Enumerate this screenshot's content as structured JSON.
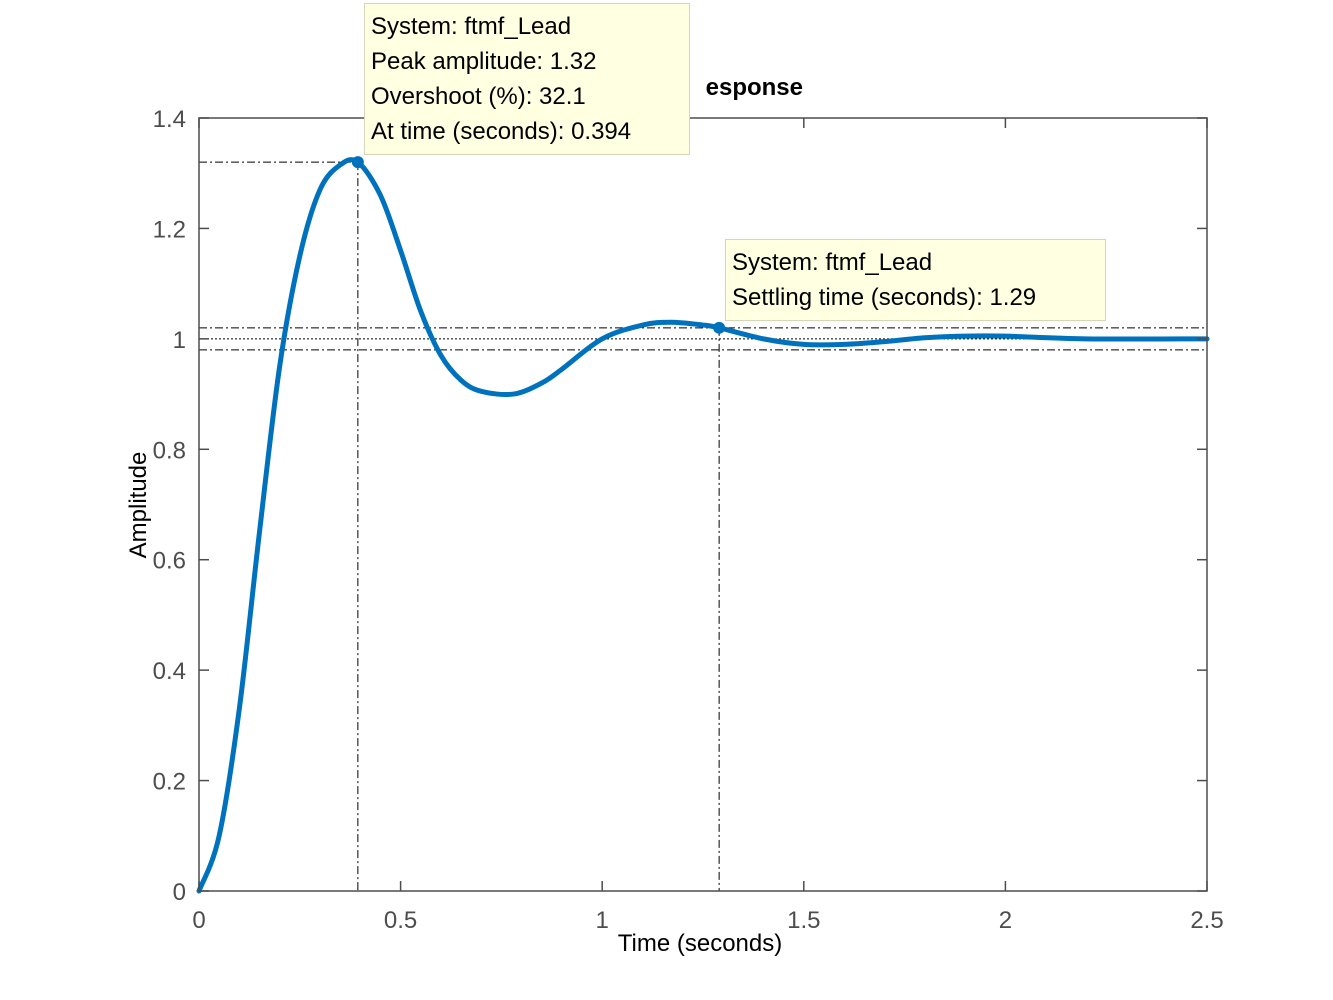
{
  "chart_data": {
    "type": "line",
    "title": "esponse",
    "xlabel": "Time (seconds)",
    "ylabel": "Amplitude",
    "xlim": [
      0,
      2.5
    ],
    "ylim": [
      0,
      1.4
    ],
    "xticks": [
      "0",
      "0.5",
      "1",
      "1.5",
      "2",
      "2.5"
    ],
    "yticks": [
      "0",
      "0.2",
      "0.4",
      "0.6",
      "0.8",
      "1",
      "1.2",
      "1.4"
    ],
    "grid": false,
    "series": [
      {
        "name": "ftmf_Lead",
        "color": "#0072bd",
        "x": [
          0,
          0.05,
          0.1,
          0.15,
          0.2,
          0.25,
          0.3,
          0.35,
          0.394,
          0.45,
          0.5,
          0.55,
          0.6,
          0.65,
          0.7,
          0.78,
          0.85,
          0.9,
          1.0,
          1.1,
          1.17,
          1.25,
          1.29,
          1.4,
          1.5,
          1.6,
          1.7,
          1.8,
          1.9,
          2.0,
          2.2,
          2.5
        ],
        "y": [
          0,
          0.1,
          0.33,
          0.65,
          0.95,
          1.15,
          1.27,
          1.315,
          1.32,
          1.26,
          1.16,
          1.05,
          0.97,
          0.925,
          0.905,
          0.9,
          0.92,
          0.945,
          1.0,
          1.025,
          1.03,
          1.025,
          1.02,
          1.0,
          0.99,
          0.99,
          0.995,
          1.002,
          1.005,
          1.005,
          1.0,
          1.0
        ]
      }
    ],
    "steady_state": 1.0,
    "settling_band": [
      0.98,
      1.02
    ],
    "markers": [
      {
        "name": "peak",
        "x": 0.394,
        "y": 1.32
      },
      {
        "name": "settling",
        "x": 1.29,
        "y": 1.02
      }
    ]
  },
  "datatips": {
    "peak": {
      "line1": "System: ftmf_Lead",
      "line2": "Peak amplitude: 1.32",
      "line3": "Overshoot (%): 32.1",
      "line4": "At time (seconds): 0.394"
    },
    "settling": {
      "line1": "System: ftmf_Lead",
      "line2": "Settling time (seconds): 1.29"
    }
  },
  "colors": {
    "line": "#0072bd",
    "axes": "#4d4d4d",
    "tip_background": "#ffffe1"
  }
}
